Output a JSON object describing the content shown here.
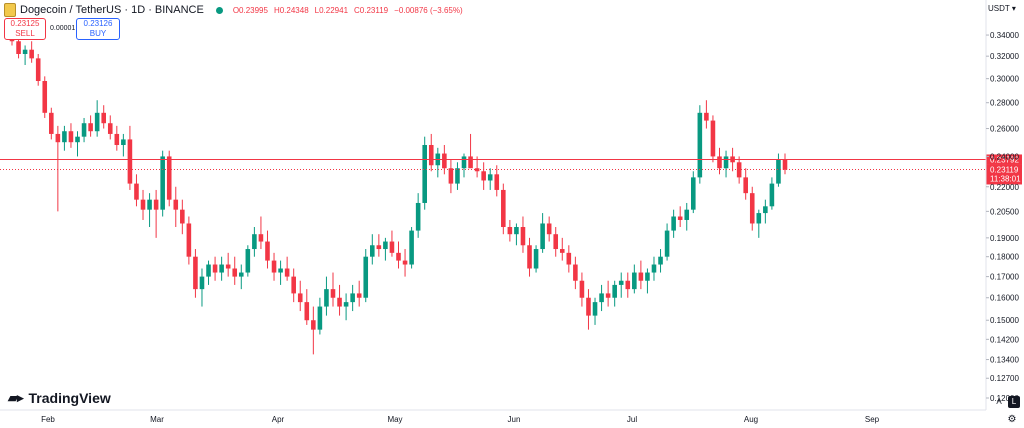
{
  "header": {
    "symbol_title": "Dogecoin / TetherUS · 1D · BINANCE",
    "open": "O0.23995",
    "high": "H0.24348",
    "low": "L0.22941",
    "close": "C0.23119",
    "change": "−0.00876 (−3.65%)"
  },
  "trade": {
    "sell_price": "0.23125",
    "sell_label": "SELL",
    "spread": "0.00001",
    "buy_price": "0.23126",
    "buy_label": "BUY"
  },
  "currency": "USDT",
  "branding": "TradingView",
  "controls": {
    "auto": "A",
    "log": "L",
    "settings_icon": "gear-icon"
  },
  "colors": {
    "up": "#089981",
    "down": "#f23645",
    "price_line": "#f23645"
  },
  "chart_data": {
    "type": "candlestick",
    "y_scale": "log",
    "ylim": [
      0.12,
      0.355
    ],
    "y_ticks": [
      "0.34000",
      "0.32000",
      "0.30000",
      "0.28000",
      "0.26000",
      "0.24000",
      "0.22000",
      "0.20500",
      "0.19000",
      "0.18000",
      "0.17000",
      "0.16000",
      "0.15000",
      "0.14200",
      "0.13400",
      "0.12700",
      "0.12000"
    ],
    "x_labels": [
      "Feb",
      "Mar",
      "Apr",
      "May",
      "Jun",
      "Jul",
      "Aug",
      "Sep"
    ],
    "price_labels": {
      "upper": "0.23792",
      "last": "0.23119",
      "countdown": "11:38:01"
    },
    "candles": [
      [
        0.345,
        0.352,
        0.33,
        0.334
      ],
      [
        0.334,
        0.34,
        0.318,
        0.322
      ],
      [
        0.322,
        0.33,
        0.312,
        0.326
      ],
      [
        0.326,
        0.334,
        0.314,
        0.318
      ],
      [
        0.318,
        0.322,
        0.294,
        0.298
      ],
      [
        0.298,
        0.302,
        0.268,
        0.272
      ],
      [
        0.272,
        0.276,
        0.252,
        0.256
      ],
      [
        0.256,
        0.262,
        0.205,
        0.25
      ],
      [
        0.25,
        0.262,
        0.244,
        0.258
      ],
      [
        0.258,
        0.264,
        0.246,
        0.25
      ],
      [
        0.25,
        0.258,
        0.24,
        0.254
      ],
      [
        0.254,
        0.268,
        0.25,
        0.264
      ],
      [
        0.264,
        0.27,
        0.254,
        0.258
      ],
      [
        0.258,
        0.282,
        0.254,
        0.272
      ],
      [
        0.272,
        0.278,
        0.26,
        0.264
      ],
      [
        0.264,
        0.27,
        0.252,
        0.256
      ],
      [
        0.256,
        0.262,
        0.244,
        0.248
      ],
      [
        0.248,
        0.256,
        0.24,
        0.252
      ],
      [
        0.252,
        0.262,
        0.218,
        0.222
      ],
      [
        0.222,
        0.228,
        0.208,
        0.212
      ],
      [
        0.212,
        0.218,
        0.2,
        0.206
      ],
      [
        0.206,
        0.216,
        0.196,
        0.212
      ],
      [
        0.212,
        0.218,
        0.19,
        0.206
      ],
      [
        0.206,
        0.244,
        0.202,
        0.24
      ],
      [
        0.24,
        0.244,
        0.208,
        0.212
      ],
      [
        0.212,
        0.22,
        0.196,
        0.206
      ],
      [
        0.206,
        0.212,
        0.192,
        0.198
      ],
      [
        0.198,
        0.202,
        0.176,
        0.18
      ],
      [
        0.18,
        0.184,
        0.16,
        0.164
      ],
      [
        0.164,
        0.174,
        0.156,
        0.17
      ],
      [
        0.17,
        0.178,
        0.166,
        0.176
      ],
      [
        0.176,
        0.18,
        0.168,
        0.172
      ],
      [
        0.172,
        0.18,
        0.168,
        0.176
      ],
      [
        0.176,
        0.182,
        0.17,
        0.174
      ],
      [
        0.174,
        0.18,
        0.166,
        0.17
      ],
      [
        0.17,
        0.176,
        0.164,
        0.172
      ],
      [
        0.172,
        0.186,
        0.17,
        0.184
      ],
      [
        0.184,
        0.196,
        0.18,
        0.192
      ],
      [
        0.192,
        0.202,
        0.184,
        0.188
      ],
      [
        0.188,
        0.194,
        0.174,
        0.178
      ],
      [
        0.178,
        0.182,
        0.168,
        0.172
      ],
      [
        0.172,
        0.178,
        0.166,
        0.174
      ],
      [
        0.174,
        0.18,
        0.168,
        0.17
      ],
      [
        0.17,
        0.174,
        0.158,
        0.162
      ],
      [
        0.162,
        0.168,
        0.154,
        0.158
      ],
      [
        0.158,
        0.164,
        0.148,
        0.15
      ],
      [
        0.15,
        0.156,
        0.136,
        0.146
      ],
      [
        0.146,
        0.16,
        0.144,
        0.156
      ],
      [
        0.156,
        0.17,
        0.152,
        0.164
      ],
      [
        0.164,
        0.172,
        0.156,
        0.16
      ],
      [
        0.16,
        0.166,
        0.152,
        0.156
      ],
      [
        0.156,
        0.162,
        0.15,
        0.158
      ],
      [
        0.158,
        0.166,
        0.154,
        0.162
      ],
      [
        0.162,
        0.168,
        0.156,
        0.16
      ],
      [
        0.16,
        0.184,
        0.158,
        0.18
      ],
      [
        0.18,
        0.192,
        0.176,
        0.186
      ],
      [
        0.186,
        0.192,
        0.18,
        0.184
      ],
      [
        0.184,
        0.19,
        0.178,
        0.188
      ],
      [
        0.188,
        0.194,
        0.18,
        0.182
      ],
      [
        0.182,
        0.188,
        0.174,
        0.178
      ],
      [
        0.178,
        0.184,
        0.17,
        0.176
      ],
      [
        0.176,
        0.196,
        0.174,
        0.194
      ],
      [
        0.194,
        0.216,
        0.19,
        0.21
      ],
      [
        0.21,
        0.254,
        0.206,
        0.248
      ],
      [
        0.248,
        0.256,
        0.23,
        0.234
      ],
      [
        0.234,
        0.246,
        0.226,
        0.242
      ],
      [
        0.242,
        0.248,
        0.228,
        0.232
      ],
      [
        0.232,
        0.238,
        0.216,
        0.222
      ],
      [
        0.222,
        0.236,
        0.218,
        0.232
      ],
      [
        0.232,
        0.242,
        0.226,
        0.24
      ],
      [
        0.24,
        0.256,
        0.234,
        0.232
      ],
      [
        0.232,
        0.24,
        0.226,
        0.23
      ],
      [
        0.23,
        0.236,
        0.218,
        0.224
      ],
      [
        0.224,
        0.232,
        0.218,
        0.228
      ],
      [
        0.228,
        0.234,
        0.214,
        0.218
      ],
      [
        0.218,
        0.222,
        0.192,
        0.196
      ],
      [
        0.196,
        0.2,
        0.188,
        0.192
      ],
      [
        0.192,
        0.198,
        0.186,
        0.196
      ],
      [
        0.196,
        0.202,
        0.182,
        0.186
      ],
      [
        0.186,
        0.19,
        0.17,
        0.174
      ],
      [
        0.174,
        0.186,
        0.172,
        0.184
      ],
      [
        0.184,
        0.204,
        0.182,
        0.198
      ],
      [
        0.198,
        0.202,
        0.188,
        0.192
      ],
      [
        0.192,
        0.196,
        0.18,
        0.184
      ],
      [
        0.184,
        0.19,
        0.178,
        0.182
      ],
      [
        0.182,
        0.186,
        0.172,
        0.176
      ],
      [
        0.176,
        0.18,
        0.164,
        0.168
      ],
      [
        0.168,
        0.172,
        0.156,
        0.16
      ],
      [
        0.16,
        0.164,
        0.146,
        0.152
      ],
      [
        0.152,
        0.16,
        0.148,
        0.158
      ],
      [
        0.158,
        0.166,
        0.154,
        0.162
      ],
      [
        0.162,
        0.168,
        0.156,
        0.16
      ],
      [
        0.16,
        0.168,
        0.156,
        0.166
      ],
      [
        0.166,
        0.172,
        0.16,
        0.168
      ],
      [
        0.168,
        0.172,
        0.16,
        0.164
      ],
      [
        0.164,
        0.176,
        0.162,
        0.172
      ],
      [
        0.172,
        0.178,
        0.164,
        0.168
      ],
      [
        0.168,
        0.174,
        0.162,
        0.172
      ],
      [
        0.172,
        0.18,
        0.168,
        0.176
      ],
      [
        0.176,
        0.184,
        0.172,
        0.18
      ],
      [
        0.18,
        0.198,
        0.178,
        0.194
      ],
      [
        0.194,
        0.206,
        0.19,
        0.202
      ],
      [
        0.202,
        0.208,
        0.196,
        0.2
      ],
      [
        0.2,
        0.21,
        0.194,
        0.206
      ],
      [
        0.206,
        0.23,
        0.204,
        0.226
      ],
      [
        0.226,
        0.278,
        0.222,
        0.272
      ],
      [
        0.272,
        0.282,
        0.26,
        0.266
      ],
      [
        0.266,
        0.27,
        0.236,
        0.24
      ],
      [
        0.24,
        0.246,
        0.228,
        0.232
      ],
      [
        0.232,
        0.244,
        0.226,
        0.24
      ],
      [
        0.24,
        0.246,
        0.23,
        0.236
      ],
      [
        0.236,
        0.24,
        0.222,
        0.226
      ],
      [
        0.226,
        0.232,
        0.212,
        0.216
      ],
      [
        0.216,
        0.22,
        0.194,
        0.198
      ],
      [
        0.198,
        0.206,
        0.19,
        0.204
      ],
      [
        0.204,
        0.212,
        0.198,
        0.208
      ],
      [
        0.208,
        0.226,
        0.206,
        0.222
      ],
      [
        0.222,
        0.242,
        0.22,
        0.238
      ],
      [
        0.238,
        0.242,
        0.228,
        0.231
      ]
    ]
  }
}
